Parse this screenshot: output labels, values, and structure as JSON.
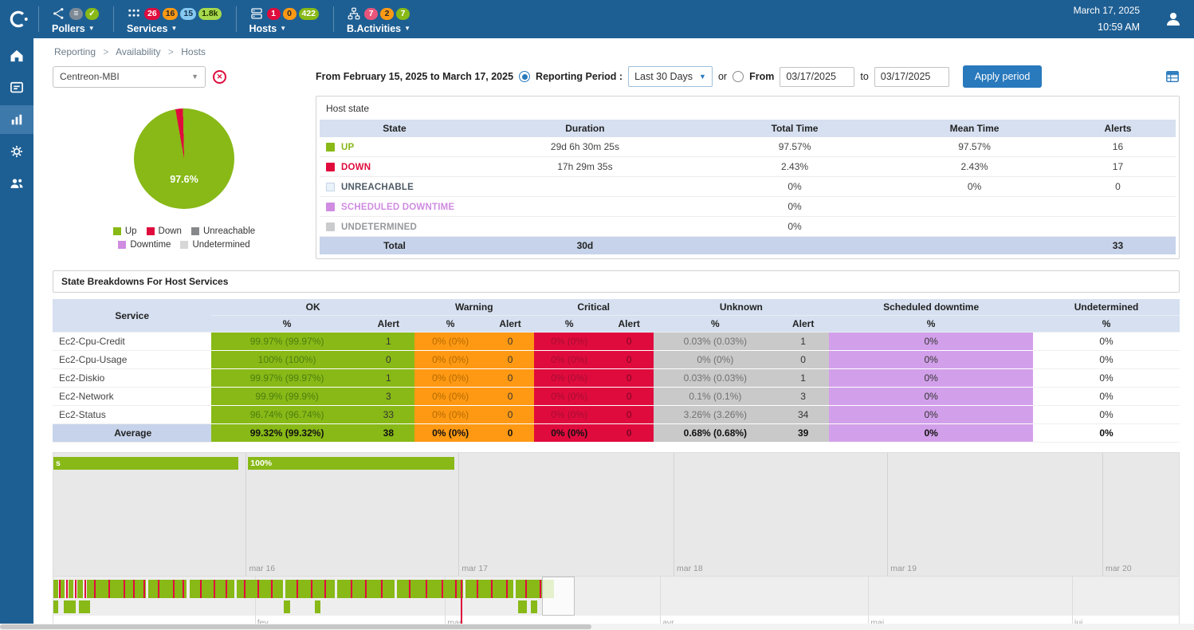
{
  "topbar": {
    "date": "March 17, 2025",
    "time": "10:59 AM",
    "menus": [
      {
        "label": "Pollers",
        "badges": [
          {
            "text": "≡",
            "bg": "#7d8a96",
            "fg": "#ffffff"
          },
          {
            "text": "✓",
            "bg": "#88b917",
            "fg": "#ffffff"
          }
        ]
      },
      {
        "label": "Services",
        "badges": [
          {
            "text": "26",
            "bg": "#e00b3d",
            "fg": "#ffffff"
          },
          {
            "text": "16",
            "bg": "#ff9913",
            "fg": "#282828"
          },
          {
            "text": "15",
            "bg": "#85c9f2",
            "fg": "#16344c"
          },
          {
            "text": "1.8k",
            "bg": "#a7d94c",
            "fg": "#1f3300"
          }
        ]
      },
      {
        "label": "Hosts",
        "badges": [
          {
            "text": "1",
            "bg": "#e00b3d",
            "fg": "#ffffff"
          },
          {
            "text": "0",
            "bg": "#ff9913",
            "fg": "#282828"
          },
          {
            "text": "422",
            "bg": "#88b917",
            "fg": "#ffffff"
          }
        ]
      },
      {
        "label": "B.Activities",
        "badges": [
          {
            "text": "7",
            "bg": "#e8557a",
            "fg": "#ffffff"
          },
          {
            "text": "2",
            "bg": "#ff9913",
            "fg": "#282828"
          },
          {
            "text": "7",
            "bg": "#88b917",
            "fg": "#ffffff"
          }
        ]
      }
    ]
  },
  "sidebar": {
    "icons": [
      "home-icon",
      "monitoring-icon",
      "reporting-icon",
      "configuration-icon",
      "administration-icon"
    ],
    "active": "reporting-icon"
  },
  "breadcrumb": {
    "items": [
      "Reporting",
      "Availability",
      "Hosts"
    ],
    "separator": ">"
  },
  "filter": {
    "host_select_value": "Centreon-MBI",
    "range_text": "From February 15, 2025 to March 17, 2025",
    "reporting_period_label": "Reporting Period :",
    "period_select_value": "Last 30 Days",
    "or_label": "or",
    "from_label": "From",
    "from_value": "03/17/2025",
    "to_label": "to",
    "to_value": "03/17/2025",
    "apply_button": "Apply period"
  },
  "pie": {
    "label": "97.6%",
    "start_angle": -10,
    "slices": [
      {
        "name": "Down",
        "value": 2.4,
        "color": "#e00b3d"
      },
      {
        "name": "Up",
        "value": 97.6,
        "color": "#88b917"
      }
    ],
    "legend": [
      {
        "label": "Up",
        "color": "#88b917"
      },
      {
        "label": "Down",
        "color": "#e00b3d"
      },
      {
        "label": "Unreachable",
        "color": "#87888a"
      },
      {
        "label": "Downtime",
        "color": "#cf8ce1"
      },
      {
        "label": "Undetermined",
        "color": "#d7d7d7"
      }
    ]
  },
  "host_state": {
    "title": "Host state",
    "headers": [
      "State",
      "Duration",
      "Total Time",
      "Mean Time",
      "Alerts"
    ],
    "rows": [
      {
        "state": "UP",
        "square": "#88b917",
        "square_border": "#88b917",
        "name_color": "#88b917",
        "duration": "29d 6h 30m 25s",
        "total_time": "97.57%",
        "mean_time": "97.57%",
        "alerts": "16"
      },
      {
        "state": "DOWN",
        "square": "#e00b3d",
        "square_border": "#e00b3d",
        "name_color": "#e00b3d",
        "duration": "17h 29m 35s",
        "total_time": "2.43%",
        "mean_time": "2.43%",
        "alerts": "17"
      },
      {
        "state": "UNREACHABLE",
        "square": "#eaf2fa",
        "square_border": "#c3d4e6",
        "name_color": "#4f5b66",
        "duration": "",
        "total_time": "0%",
        "mean_time": "0%",
        "alerts": "0"
      },
      {
        "state": "SCHEDULED DOWNTIME",
        "square": "#cf8ce1",
        "square_border": "#cf8ce1",
        "name_color": "#cf8ce1",
        "duration": "",
        "total_time": "0%",
        "mean_time": "",
        "alerts": ""
      },
      {
        "state": "UNDETERMINED",
        "square": "#c9cbcd",
        "square_border": "#c9cbcd",
        "name_color": "#95989b",
        "duration": "",
        "total_time": "0%",
        "mean_time": "",
        "alerts": ""
      }
    ],
    "total": {
      "label": "Total",
      "duration": "30d",
      "alerts": "33"
    }
  },
  "breakdown": {
    "title": "State Breakdowns For Host Services",
    "col_service": "Service",
    "groups": [
      "OK",
      "Warning",
      "Critical",
      "Unknown",
      "Scheduled downtime",
      "Undetermined"
    ],
    "sub_pct": "%",
    "sub_alert": "Alert",
    "rows": [
      {
        "service": "Ec2-Cpu-Credit",
        "ok": "99.97% (99.97%)",
        "ok_alert": "1",
        "warning": "0% (0%)",
        "warning_alert": "0",
        "critical": "0% (0%)",
        "critical_alert": "0",
        "unknown": "0.03% (0.03%)",
        "unknown_alert": "1",
        "scheduled": "0%",
        "undetermined": "0%"
      },
      {
        "service": "Ec2-Cpu-Usage",
        "ok": "100% (100%)",
        "ok_alert": "0",
        "warning": "0% (0%)",
        "warning_alert": "0",
        "critical": "0% (0%)",
        "critical_alert": "0",
        "unknown": "0% (0%)",
        "unknown_alert": "0",
        "scheduled": "0%",
        "undetermined": "0%"
      },
      {
        "service": "Ec2-Diskio",
        "ok": "99.97% (99.97%)",
        "ok_alert": "1",
        "warning": "0% (0%)",
        "warning_alert": "0",
        "critical": "0% (0%)",
        "critical_alert": "0",
        "unknown": "0.03% (0.03%)",
        "unknown_alert": "1",
        "scheduled": "0%",
        "undetermined": "0%"
      },
      {
        "service": "Ec2-Network",
        "ok": "99.9% (99.9%)",
        "ok_alert": "3",
        "warning": "0% (0%)",
        "warning_alert": "0",
        "critical": "0% (0%)",
        "critical_alert": "0",
        "unknown": "0.1% (0.1%)",
        "unknown_alert": "3",
        "scheduled": "0%",
        "undetermined": "0%"
      },
      {
        "service": "Ec2-Status",
        "ok": "96.74% (96.74%)",
        "ok_alert": "33",
        "warning": "0% (0%)",
        "warning_alert": "0",
        "critical": "0% (0%)",
        "critical_alert": "0",
        "unknown": "3.26% (3.26%)",
        "unknown_alert": "34",
        "scheduled": "0%",
        "undetermined": "0%"
      }
    ],
    "average": {
      "service": "Average",
      "ok": "99.32% (99.32%)",
      "ok_alert": "38",
      "warning": "0% (0%)",
      "warning_alert": "0",
      "critical": "0% (0%)",
      "critical_alert": "0",
      "unknown": "0.68% (0.68%)",
      "unknown_alert": "39",
      "scheduled": "0%",
      "undetermined": "0%"
    }
  },
  "timeline": {
    "detail": {
      "bars": [
        {
          "x": 0,
          "w": 16.4,
          "label": "s"
        },
        {
          "x": 17.3,
          "w": 18.3,
          "label": "100%"
        }
      ],
      "gridlines": [
        {
          "x": 17.1,
          "label": "mar 16"
        },
        {
          "x": 36.0,
          "label": "mar 17"
        },
        {
          "x": 55.1,
          "label": "mar 18"
        },
        {
          "x": 74.1,
          "label": "mar 19"
        },
        {
          "x": 93.2,
          "label": "mar 20"
        }
      ]
    },
    "scrubber": {
      "segments": [
        {
          "x": 0,
          "w": 0.4
        },
        {
          "x": 0.65,
          "w": 0.35
        },
        {
          "x": 1.35,
          "w": 0.45
        },
        {
          "x": 2.1,
          "w": 0.55
        },
        {
          "x": 3.0,
          "w": 5.2
        },
        {
          "x": 8.4,
          "w": 3.4
        },
        {
          "x": 12.1,
          "w": 4.0
        },
        {
          "x": 16.3,
          "w": 4.1
        },
        {
          "x": 20.6,
          "w": 4.4
        },
        {
          "x": 25.2,
          "w": 5.1
        },
        {
          "x": 30.5,
          "w": 5.9
        },
        {
          "x": 36.6,
          "w": 4.3
        },
        {
          "x": 41.1,
          "w": 3.4
        }
      ],
      "red_ticks": [
        0.5,
        1.15,
        1.9,
        2.75,
        3.6,
        4.9,
        6.2,
        7.1,
        8.0,
        9.3,
        10.6,
        11.5,
        13.0,
        14.2,
        15.3,
        16.9,
        18.1,
        19.3,
        21.6,
        22.9,
        24.1,
        26.4,
        27.7,
        29.1,
        31.6,
        33.1,
        34.5,
        35.7,
        37.6,
        38.9,
        40.2,
        41.9,
        43.2
      ],
      "blocks": [
        {
          "x": 0,
          "w": 0.45
        },
        {
          "x": 0.95,
          "w": 1.05
        },
        {
          "x": 2.25,
          "w": 1.0
        },
        {
          "x": 20.5,
          "w": 0.5
        },
        {
          "x": 23.2,
          "w": 0.55
        },
        {
          "x": 41.3,
          "w": 0.8
        },
        {
          "x": 42.4,
          "w": 0.6
        }
      ],
      "gridlines": [
        {
          "x": 17.9,
          "label": "fev"
        },
        {
          "x": 34.8,
          "label": "mar"
        },
        {
          "x": 53.9,
          "label": "avr"
        },
        {
          "x": 72.4,
          "label": "mai"
        },
        {
          "x": 90.5,
          "label": "jui"
        }
      ],
      "marker": 36.2,
      "selection": {
        "x": 43.4,
        "w": 2.9
      }
    }
  }
}
